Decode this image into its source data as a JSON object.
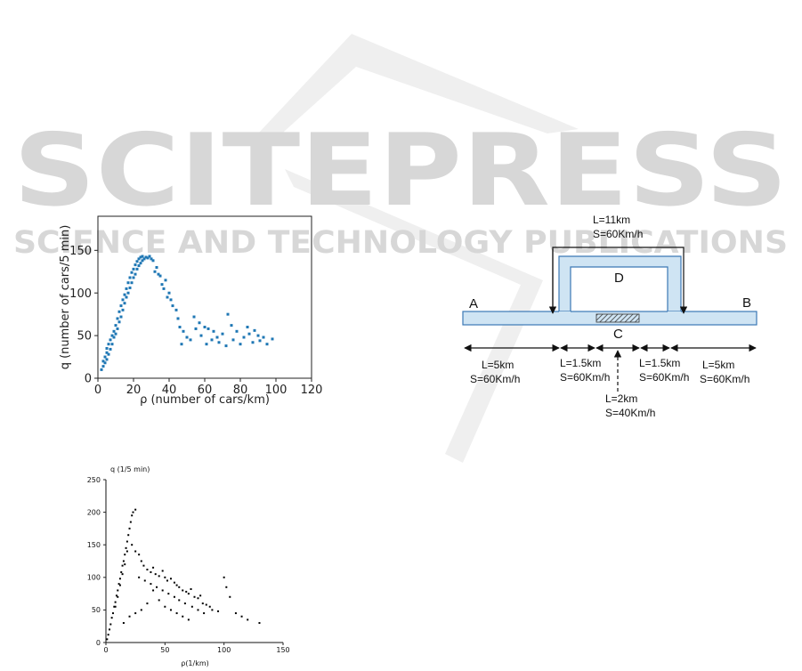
{
  "watermark": {
    "brand": "SCITEPRESS",
    "tagline": "SCIENCE AND TECHNOLOGY PUBLICATIONS"
  },
  "chart_data": [
    {
      "type": "scatter",
      "title": "",
      "xlabel": "ρ (number of cars/km)",
      "ylabel": "q (number of cars/5 min)",
      "xlim": [
        0,
        120
      ],
      "ylim": [
        0,
        190
      ],
      "xticks": [
        "0",
        "20",
        "40",
        "60",
        "80",
        "100",
        "120"
      ],
      "yticks": [
        "0",
        "50",
        "100",
        "150"
      ],
      "color": "#1f77b4",
      "grid": false,
      "series": [
        {
          "points": [
            [
              2,
              10
            ],
            [
              3,
              14
            ],
            [
              3,
              20
            ],
            [
              4,
              18
            ],
            [
              4,
              25
            ],
            [
              5,
              22
            ],
            [
              5,
              30
            ],
            [
              5,
              35
            ],
            [
              6,
              28
            ],
            [
              6,
              40
            ],
            [
              7,
              34
            ],
            [
              7,
              45
            ],
            [
              8,
              40
            ],
            [
              8,
              50
            ],
            [
              9,
              48
            ],
            [
              9,
              55
            ],
            [
              10,
              52
            ],
            [
              10,
              62
            ],
            [
              11,
              58
            ],
            [
              11,
              70
            ],
            [
              12,
              66
            ],
            [
              12,
              78
            ],
            [
              13,
              72
            ],
            [
              13,
              85
            ],
            [
              14,
              80
            ],
            [
              14,
              92
            ],
            [
              15,
              88
            ],
            [
              15,
              98
            ],
            [
              16,
              95
            ],
            [
              16,
              105
            ],
            [
              17,
              100
            ],
            [
              17,
              112
            ],
            [
              18,
              106
            ],
            [
              18,
              118
            ],
            [
              19,
              112
            ],
            [
              19,
              124
            ],
            [
              20,
              118
            ],
            [
              20,
              128
            ],
            [
              21,
              122
            ],
            [
              21,
              133
            ],
            [
              22,
              128
            ],
            [
              22,
              137
            ],
            [
              23,
              132
            ],
            [
              23,
              140
            ],
            [
              24,
              135
            ],
            [
              24,
              142
            ],
            [
              25,
              138
            ],
            [
              25,
              143
            ],
            [
              26,
              140
            ],
            [
              27,
              142
            ],
            [
              28,
              141
            ],
            [
              29,
              143
            ],
            [
              30,
              140
            ],
            [
              31,
              138
            ],
            [
              32,
              125
            ],
            [
              33,
              130
            ],
            [
              34,
              122
            ],
            [
              35,
              120
            ],
            [
              36,
              110
            ],
            [
              37,
              105
            ],
            [
              38,
              115
            ],
            [
              39,
              95
            ],
            [
              40,
              100
            ],
            [
              41,
              92
            ],
            [
              42,
              85
            ],
            [
              44,
              80
            ],
            [
              45,
              70
            ],
            [
              46,
              60
            ],
            [
              47,
              40
            ],
            [
              48,
              55
            ],
            [
              50,
              48
            ],
            [
              52,
              45
            ],
            [
              54,
              72
            ],
            [
              55,
              58
            ],
            [
              57,
              65
            ],
            [
              58,
              50
            ],
            [
              60,
              60
            ],
            [
              61,
              40
            ],
            [
              62,
              58
            ],
            [
              64,
              45
            ],
            [
              65,
              55
            ],
            [
              67,
              48
            ],
            [
              68,
              42
            ],
            [
              70,
              52
            ],
            [
              72,
              38
            ],
            [
              73,
              75
            ],
            [
              75,
              62
            ],
            [
              76,
              45
            ],
            [
              78,
              55
            ],
            [
              80,
              40
            ],
            [
              82,
              48
            ],
            [
              84,
              60
            ],
            [
              85,
              52
            ],
            [
              87,
              42
            ],
            [
              88,
              56
            ],
            [
              90,
              50
            ],
            [
              91,
              44
            ],
            [
              93,
              48
            ],
            [
              95,
              40
            ],
            [
              98,
              46
            ]
          ]
        }
      ]
    },
    {
      "type": "scatter",
      "title": "",
      "xlabel": "ρ(1/km)",
      "ylabel": "q (1/5 min)",
      "xlim": [
        0,
        150
      ],
      "ylim": [
        0,
        250
      ],
      "xticks": [
        "0",
        "50",
        "100",
        "150"
      ],
      "yticks": [
        "0",
        "50",
        "100",
        "150",
        "200",
        "250"
      ],
      "color": "#000000",
      "grid": false,
      "series": [
        {
          "points": [
            [
              1,
              5
            ],
            [
              2,
              12
            ],
            [
              3,
              20
            ],
            [
              4,
              28
            ],
            [
              5,
              38
            ],
            [
              6,
              45
            ],
            [
              7,
              55
            ],
            [
              8,
              62
            ],
            [
              9,
              72
            ],
            [
              10,
              80
            ],
            [
              11,
              90
            ],
            [
              12,
              98
            ],
            [
              13,
              108
            ],
            [
              14,
              118
            ],
            [
              15,
              125
            ],
            [
              16,
              135
            ],
            [
              17,
              145
            ],
            [
              18,
              155
            ],
            [
              19,
              165
            ],
            [
              20,
              175
            ],
            [
              21,
              185
            ],
            [
              22,
              195
            ],
            [
              23,
              200
            ],
            [
              25,
              204
            ],
            [
              18,
              140
            ],
            [
              16,
              120
            ],
            [
              14,
              105
            ],
            [
              12,
              88
            ],
            [
              10,
              70
            ],
            [
              8,
              55
            ],
            [
              22,
              150
            ],
            [
              25,
              140
            ],
            [
              28,
              135
            ],
            [
              30,
              125
            ],
            [
              32,
              118
            ],
            [
              35,
              112
            ],
            [
              38,
              108
            ],
            [
              40,
              115
            ],
            [
              42,
              105
            ],
            [
              45,
              102
            ],
            [
              48,
              110
            ],
            [
              50,
              100
            ],
            [
              52,
              95
            ],
            [
              55,
              98
            ],
            [
              58,
              92
            ],
            [
              60,
              88
            ],
            [
              62,
              85
            ],
            [
              65,
              80
            ],
            [
              68,
              78
            ],
            [
              70,
              75
            ],
            [
              72,
              82
            ],
            [
              75,
              70
            ],
            [
              78,
              68
            ],
            [
              80,
              72
            ],
            [
              82,
              60
            ],
            [
              85,
              58
            ],
            [
              88,
              55
            ],
            [
              90,
              50
            ],
            [
              95,
              48
            ],
            [
              100,
              100
            ],
            [
              102,
              85
            ],
            [
              105,
              70
            ],
            [
              110,
              45
            ],
            [
              115,
              40
            ],
            [
              120,
              35
            ],
            [
              130,
              30
            ],
            [
              40,
              80
            ],
            [
              45,
              65
            ],
            [
              50,
              55
            ],
            [
              55,
              50
            ],
            [
              60,
              45
            ],
            [
              65,
              40
            ],
            [
              70,
              35
            ],
            [
              35,
              60
            ],
            [
              30,
              50
            ],
            [
              25,
              45
            ],
            [
              20,
              40
            ],
            [
              15,
              30
            ],
            [
              28,
              100
            ],
            [
              33,
              95
            ],
            [
              38,
              90
            ],
            [
              43,
              85
            ],
            [
              48,
              80
            ],
            [
              53,
              75
            ],
            [
              58,
              70
            ],
            [
              62,
              65
            ],
            [
              67,
              60
            ],
            [
              73,
              55
            ],
            [
              78,
              50
            ],
            [
              83,
              45
            ]
          ]
        }
      ]
    }
  ],
  "diagram": {
    "nodes": {
      "a": "A",
      "b": "B",
      "c": "C",
      "d": "D"
    },
    "bypass": {
      "length": "L=11km",
      "speed": "S=60Km/h"
    },
    "segments": [
      {
        "length": "L=5km",
        "speed": "S=60Km/h"
      },
      {
        "length": "L=1.5km",
        "speed": "S=60Km/h"
      },
      {
        "length": "L=2km",
        "speed": "S=40Km/h"
      },
      {
        "length": "L=1.5km",
        "speed": "S=60Km/h"
      },
      {
        "length": "L=5km",
        "speed": "S=60Km/h"
      }
    ]
  }
}
